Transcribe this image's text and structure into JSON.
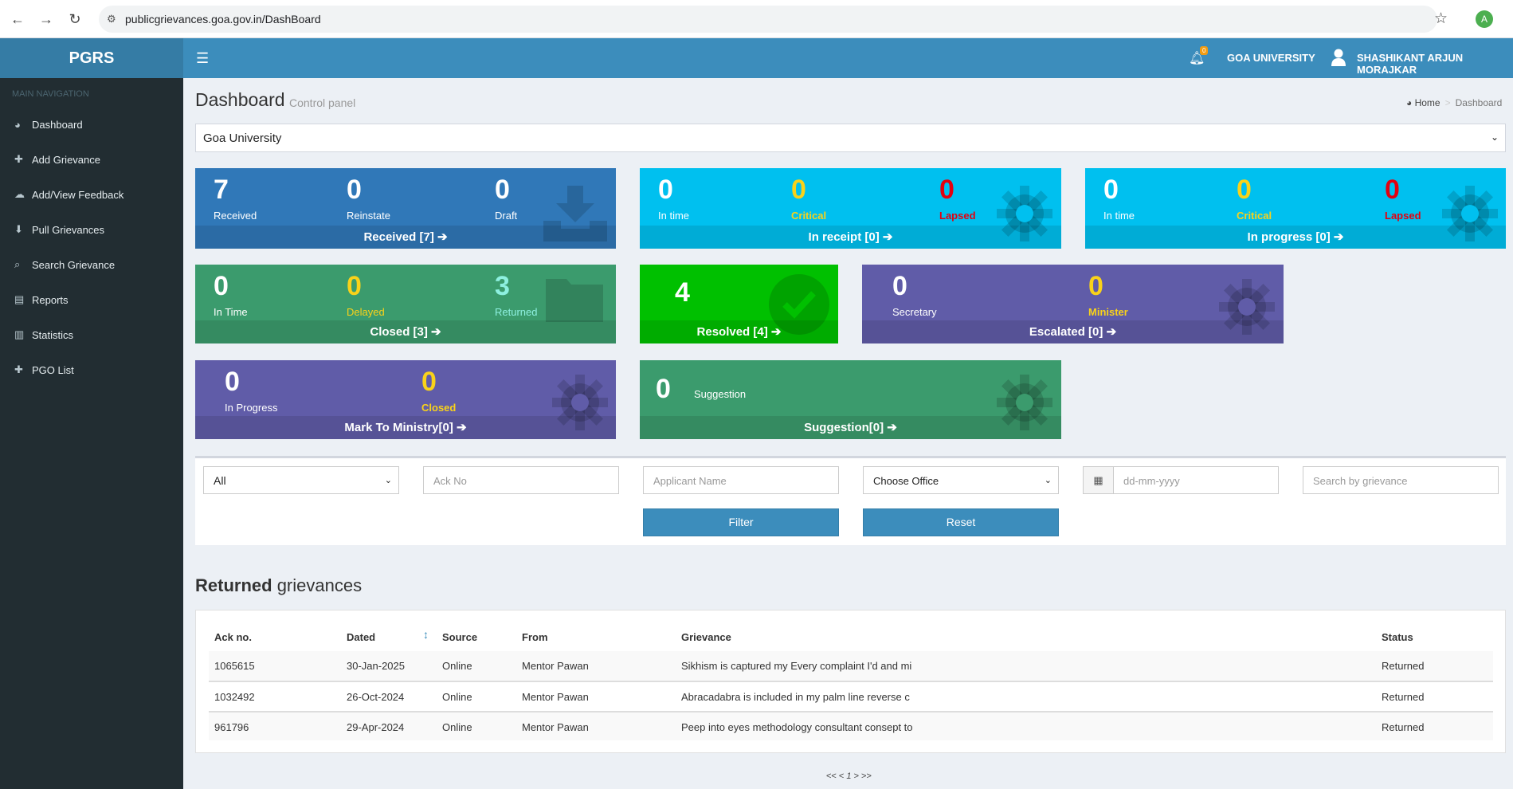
{
  "browser": {
    "url": "publicgrievances.goa.gov.in/DashBoard",
    "profile_initial": "A",
    "icons": [
      "back-icon",
      "forward-icon",
      "reload-icon",
      "site-info-icon",
      "star-icon"
    ]
  },
  "app": {
    "logo": "PGRS"
  },
  "sidebar": {
    "header": "MAIN NAVIGATION",
    "items": [
      {
        "label": "Dashboard",
        "icon": "dashboard-icon",
        "glyph": "◕"
      },
      {
        "label": "Add Grievance",
        "icon": "plus-icon",
        "glyph": "✚"
      },
      {
        "label": "Add/View Feedback",
        "icon": "comments-icon",
        "glyph": "☁"
      },
      {
        "label": "Pull Grievances",
        "icon": "download-icon",
        "glyph": "⬇"
      },
      {
        "label": "Search Grievance",
        "icon": "search-icon",
        "glyph": "⌕"
      },
      {
        "label": "Reports",
        "icon": "report-icon",
        "glyph": "▤"
      },
      {
        "label": "Statistics",
        "icon": "bar-chart-icon",
        "glyph": "▥"
      },
      {
        "label": "PGO List",
        "icon": "plus-icon",
        "glyph": "✚"
      }
    ]
  },
  "topbar": {
    "notification_count": "0",
    "organization": "GOA UNIVERSITY",
    "user_name": "SHASHIKANT ARJUN MORAJKAR"
  },
  "content": {
    "title": "Dashboard",
    "subtitle": "Control panel",
    "breadcrumb": {
      "home": "Home",
      "current": "Dashboard"
    },
    "office_select": "Goa University"
  },
  "boxes": {
    "received": {
      "received": "7",
      "received_label": "Received",
      "reinstate": "0",
      "reinstate_label": "Reinstate",
      "draft": "0",
      "draft_label": "Draft",
      "footer": "Received [7]"
    },
    "in_receipt": {
      "in_time": "0",
      "in_time_label": "In time",
      "critical": "0",
      "critical_label": "Critical",
      "lapsed": "0",
      "lapsed_label": "Lapsed",
      "footer": "In receipt [0]"
    },
    "in_progress": {
      "in_time": "0",
      "in_time_label": "In time",
      "critical": "0",
      "critical_label": "Critical",
      "lapsed": "0",
      "lapsed_label": "Lapsed",
      "footer": "In progress [0]"
    },
    "closed": {
      "in_time": "0",
      "in_time_label": "In Time",
      "delayed": "0",
      "delayed_label": "Delayed",
      "returned": "3",
      "returned_label": "Returned",
      "footer": "Closed [3]"
    },
    "resolved": {
      "value": "4",
      "footer": "Resolved [4]"
    },
    "escalated": {
      "secretary": "0",
      "secretary_label": "Secretary",
      "minister": "0",
      "minister_label": "Minister",
      "footer": "Escalated [0]"
    },
    "mark_to_ministry": {
      "in_progress": "0",
      "in_progress_label": "In Progress",
      "closed": "0",
      "closed_label": "Closed",
      "footer": "Mark To Ministry[0]"
    },
    "suggestion": {
      "value": "0",
      "label": "Suggestion",
      "footer": "Suggestion[0]"
    }
  },
  "filter": {
    "type_select": "All",
    "ack_placeholder": "Ack No",
    "applicant_placeholder": "Applicant Name",
    "office_select": "Choose Office",
    "date_placeholder": "dd-mm-yyyy",
    "search_placeholder": "Search by grievance",
    "filter_button": "Filter",
    "reset_button": "Reset"
  },
  "returned": {
    "title_bold": "Returned",
    "title_rest": "grievances",
    "columns": [
      "Ack no.",
      "Dated",
      "Source",
      "From",
      "Grievance",
      "Status"
    ],
    "rows": [
      {
        "ack": "1065615",
        "dated": "30-Jan-2025",
        "source": "Online",
        "from": "Mentor Pawan",
        "grievance": "Sikhism is captured my Every complaint I'd and mi",
        "status": "Returned"
      },
      {
        "ack": "1032492",
        "dated": "26-Oct-2024",
        "source": "Online",
        "from": "Mentor Pawan",
        "grievance": "Abracadabra is included in my palm line reverse c",
        "status": "Returned"
      },
      {
        "ack": "961796",
        "dated": "29-Apr-2024",
        "source": "Online",
        "from": "Mentor Pawan",
        "grievance": "Peep into eyes methodology consultant consept to",
        "status": "Returned"
      }
    ],
    "pager": {
      "prev": "<< <",
      "current": "1",
      "next": "> >>"
    }
  }
}
